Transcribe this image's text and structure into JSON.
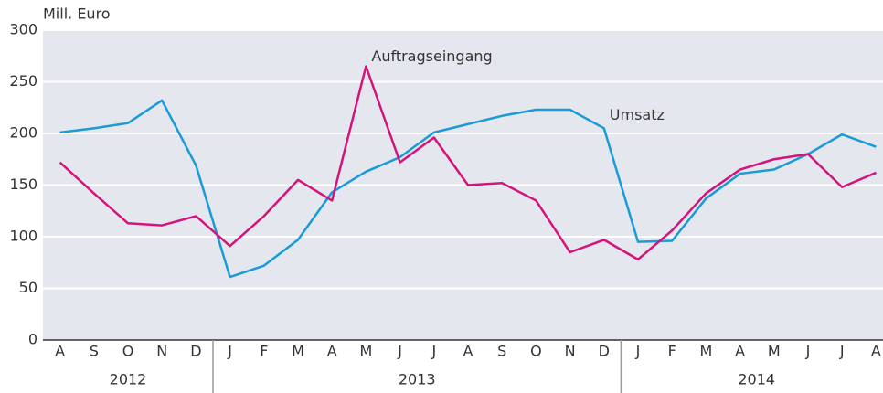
{
  "chart_data": {
    "type": "line",
    "y_label": "Mill. Euro",
    "categories": [
      "A",
      "S",
      "O",
      "N",
      "D",
      "J",
      "F",
      "M",
      "A",
      "M",
      "J",
      "J",
      "A",
      "S",
      "O",
      "N",
      "D",
      "J",
      "F",
      "M",
      "A",
      "M",
      "J",
      "J",
      "A"
    ],
    "year_groups": [
      {
        "name": "2012",
        "span": 5
      },
      {
        "name": "2013",
        "span": 12
      },
      {
        "name": "2014",
        "span": 8
      }
    ],
    "series": [
      {
        "name": "Umsatz",
        "color": "#1a9ad6",
        "values": [
          201,
          205,
          210,
          232,
          169,
          61,
          72,
          97,
          143,
          163,
          177,
          201,
          209,
          217,
          223,
          223,
          205,
          95,
          96,
          137,
          161,
          165,
          180,
          199,
          187
        ]
      },
      {
        "name": "Auftragseingang",
        "color": "#d6137a",
        "values": [
          172,
          142,
          113,
          111,
          120,
          91,
          120,
          155,
          135,
          265,
          172,
          196,
          150,
          152,
          135,
          85,
          97,
          78,
          106,
          142,
          165,
          175,
          180,
          148,
          162
        ]
      }
    ],
    "ylim": [
      0,
      300
    ],
    "yticks": [
      0,
      50,
      100,
      150,
      200,
      250,
      300
    ],
    "grid": true
  }
}
